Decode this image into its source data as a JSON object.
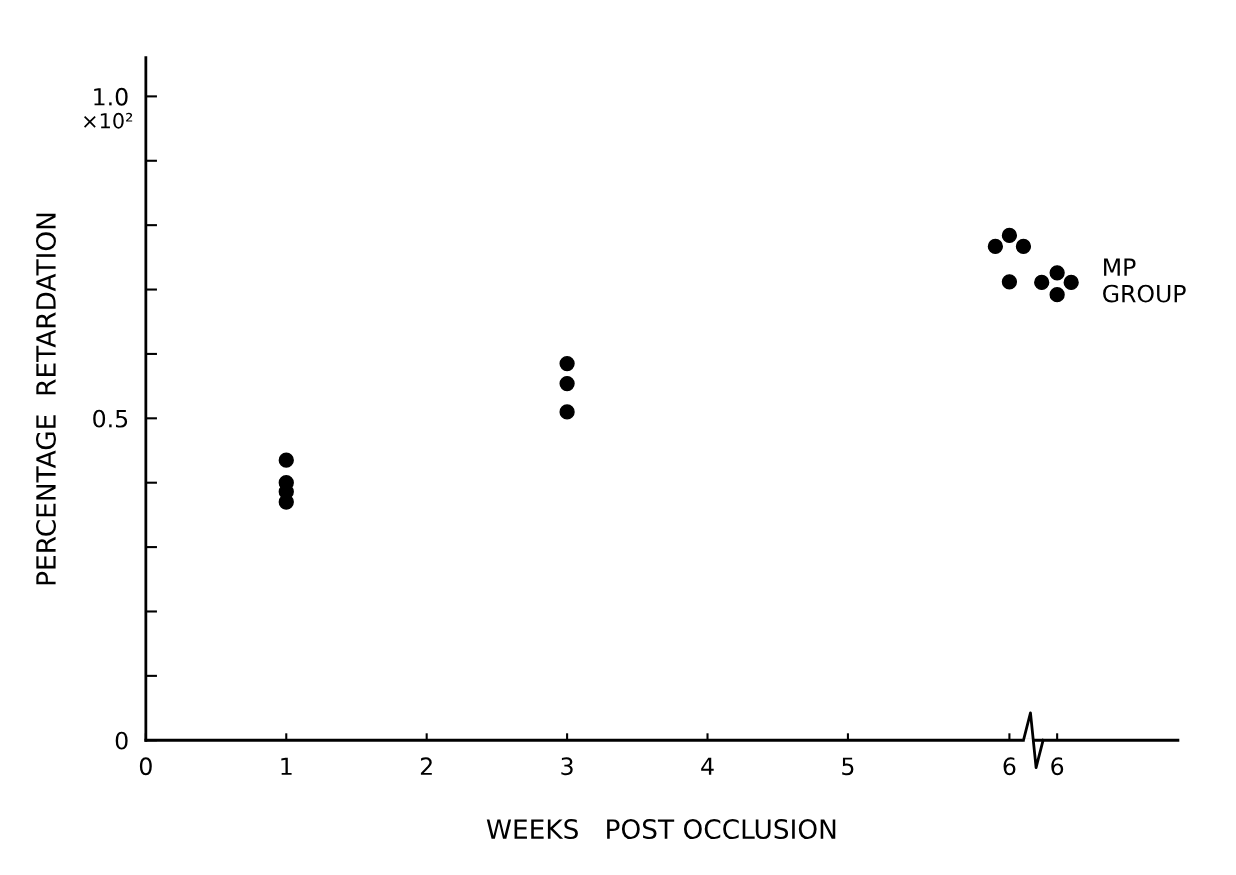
{
  "chart_data": {
    "type": "scatter",
    "xlabel": "WEEKS   POST OCCLUSION",
    "ylabel": "PERCENTAGE  RETARDATION",
    "series": [
      {
        "color": "#000000",
        "x": [
          1,
          1,
          1,
          1,
          3,
          3,
          3,
          6.15,
          6.05,
          6.25,
          6.15,
          6.49,
          6.38,
          6.59,
          6.49
        ],
        "values": [
          0.435,
          0.4,
          0.386,
          0.37,
          0.585,
          0.554,
          0.51,
          0.784,
          0.767,
          0.767,
          0.712,
          0.726,
          0.711,
          0.711,
          0.692
        ]
      }
    ],
    "xlim": [
      0,
      7.35
    ],
    "ylim": [
      0,
      1.06
    ],
    "xticks": [
      0,
      1,
      2,
      3,
      4,
      5,
      {
        "value": 6.15,
        "label": "6"
      },
      {
        "value": 6.49,
        "label": "6"
      }
    ],
    "yticks": [
      {
        "value": 0,
        "label": "0"
      },
      {
        "value": 0.1,
        "label": null
      },
      {
        "value": 0.2,
        "label": null
      },
      {
        "value": 0.3,
        "label": null
      },
      {
        "value": 0.4,
        "label": null
      },
      {
        "value": 0.5,
        "label": "0.5"
      },
      {
        "value": 0.6,
        "label": null
      },
      {
        "value": 0.7,
        "label": null
      },
      {
        "value": 0.8,
        "label": null
      },
      {
        "value": 0.9,
        "label": null
      },
      {
        "value": 1.0,
        "label": "1.0"
      }
    ],
    "annotations": [
      "×10²",
      {
        "text": "MP GROUP",
        "x": 6.59,
        "y": 0.711
      }
    ],
    "grid": false,
    "legend": false,
    "marker": "circle"
  }
}
